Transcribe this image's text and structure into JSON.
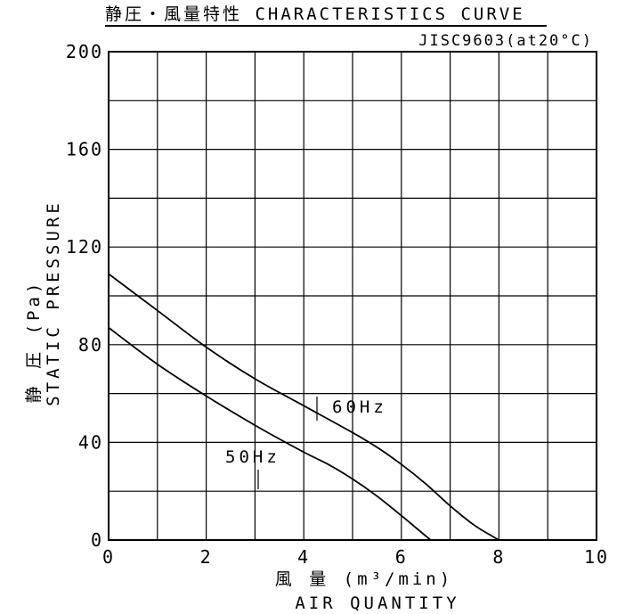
{
  "header": {
    "title": "静圧・風量特性 CHARACTERISTICS CURVE",
    "standard": "JISC9603(at20°C)"
  },
  "chart_data": {
    "type": "line",
    "xlabel": "風 量 (m³/min)",
    "xlabel_en": "AIR QUANTITY",
    "ylabel": "静 圧 (Pa)",
    "ylabel_en": "STATIC PRESSURE",
    "xlim": [
      0,
      10
    ],
    "ylim": [
      0,
      200
    ],
    "x_ticks": [
      "0",
      "2",
      "4",
      "6",
      "8",
      "10"
    ],
    "y_ticks": [
      "0",
      "40",
      "80",
      "120",
      "160",
      "200"
    ],
    "grid": true,
    "series": [
      {
        "name": "60Hz",
        "points": [
          [
            0,
            109
          ],
          [
            1,
            94
          ],
          [
            2,
            79
          ],
          [
            3,
            66
          ],
          [
            4,
            55
          ],
          [
            5,
            44
          ],
          [
            5.5,
            38
          ],
          [
            6,
            31
          ],
          [
            6.5,
            23
          ],
          [
            7,
            14
          ],
          [
            7.5,
            6
          ],
          [
            8,
            0
          ]
        ]
      },
      {
        "name": "50Hz",
        "points": [
          [
            0,
            87
          ],
          [
            1,
            72
          ],
          [
            2,
            59
          ],
          [
            3,
            47
          ],
          [
            4,
            36
          ],
          [
            4.5,
            31
          ],
          [
            5,
            25
          ],
          [
            5.5,
            18
          ],
          [
            6,
            10
          ],
          [
            6.3,
            5
          ],
          [
            6.6,
            0
          ]
        ]
      }
    ]
  }
}
